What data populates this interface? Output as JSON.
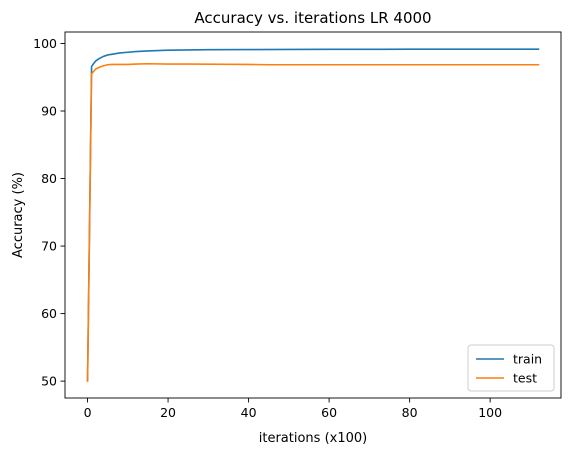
{
  "chart_data": {
    "type": "line",
    "title": "Accuracy vs. iterations LR 4000",
    "xlabel": "iterations (x100)",
    "ylabel": "Accuracy (%)",
    "xlim": [
      -5.6,
      117.6
    ],
    "ylim": [
      47.5,
      101.7
    ],
    "xticks": [
      0,
      20,
      40,
      60,
      80,
      100
    ],
    "yticks": [
      50,
      60,
      70,
      80,
      90,
      100
    ],
    "grid": false,
    "legend_position": "lower right",
    "series": [
      {
        "name": "train",
        "color": "#1f77b4",
        "x": [
          0,
          1,
          2,
          3,
          4,
          5,
          6,
          8,
          10,
          12,
          15,
          20,
          25,
          30,
          40,
          50,
          60,
          70,
          80,
          90,
          100,
          112
        ],
        "y": [
          50.1,
          96.6,
          97.4,
          97.8,
          98.1,
          98.3,
          98.4,
          98.6,
          98.7,
          98.8,
          98.9,
          99.0,
          99.05,
          99.08,
          99.1,
          99.12,
          99.13,
          99.14,
          99.15,
          99.15,
          99.15,
          99.15
        ]
      },
      {
        "name": "test",
        "color": "#ff7f0e",
        "x": [
          0,
          1,
          2,
          3,
          4,
          5,
          6,
          8,
          10,
          12,
          15,
          20,
          25,
          30,
          40,
          45,
          50,
          60,
          70,
          80,
          90,
          100,
          112
        ],
        "y": [
          50.0,
          95.5,
          96.2,
          96.5,
          96.7,
          96.85,
          96.9,
          96.9,
          96.9,
          96.95,
          97.0,
          96.95,
          96.95,
          96.93,
          96.9,
          96.85,
          96.85,
          96.85,
          96.85,
          96.85,
          96.85,
          96.85,
          96.85
        ]
      }
    ]
  }
}
